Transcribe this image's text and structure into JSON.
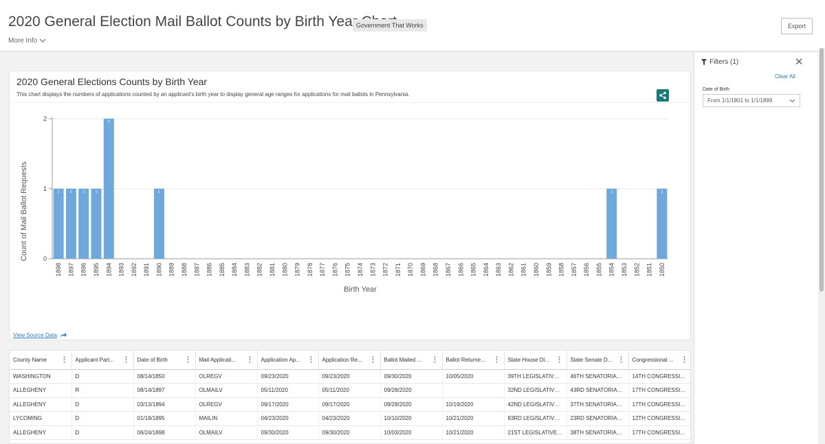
{
  "header": {
    "title": "2020 General Election Mail Ballot Counts by Birth Year Chart",
    "tag": "Government That Works",
    "more_info": "More Info",
    "export_label": "Export"
  },
  "filters": {
    "title": "Filters (1)",
    "clear_all": "Clear All",
    "dob_label": "Date of Birth",
    "dob_value": "From 1/1/1801 to 1/1/1899"
  },
  "chart_card": {
    "title": "2020 General Elections Counts by Birth Year",
    "subtitle": "This chart displays the numbers of applications counted by an applicant's birth year to display general age ranges for applications for mail ballots in Pennsylvania.",
    "view_source": "View Source Data"
  },
  "chart_data": {
    "type": "bar",
    "xlabel": "Birth Year",
    "ylabel": "Count of Mail Ballot Requests",
    "ylim": [
      0,
      2
    ],
    "yticks": [
      "0",
      "1",
      "2"
    ],
    "categories": [
      "1898",
      "1897",
      "1896",
      "1895",
      "1894",
      "1893",
      "1892",
      "1891",
      "1890",
      "1889",
      "1888",
      "1887",
      "1886",
      "1885",
      "1884",
      "1883",
      "1882",
      "1881",
      "1880",
      "1879",
      "1878",
      "1877",
      "1876",
      "1875",
      "1874",
      "1873",
      "1872",
      "1871",
      "1870",
      "1869",
      "1868",
      "1867",
      "1866",
      "1865",
      "1864",
      "1863",
      "1862",
      "1861",
      "1860",
      "1859",
      "1858",
      "1857",
      "1856",
      "1855",
      "1854",
      "1853",
      "1852",
      "1851",
      "1850"
    ],
    "values": [
      1,
      1,
      1,
      1,
      2,
      0,
      0,
      0,
      1,
      0,
      0,
      0,
      0,
      0,
      0,
      0,
      0,
      0,
      0,
      0,
      0,
      0,
      0,
      0,
      0,
      0,
      0,
      0,
      0,
      0,
      0,
      0,
      0,
      0,
      0,
      0,
      0,
      0,
      0,
      0,
      0,
      0,
      0,
      0,
      1,
      0,
      0,
      0,
      1
    ],
    "color": "#6fa8dc",
    "grid": true
  },
  "table": {
    "columns": [
      "County Name",
      "Applicant Part...",
      "Date of Birth",
      "Mail Applicati...",
      "Application Ap...",
      "Application Re...",
      "Ballot Mailed ...",
      "Ballot Returne...",
      "State House Di...",
      "State Senate D...",
      "Congressional ..."
    ],
    "rows": [
      [
        "WASHINGTON",
        "D",
        "08/14/1850",
        "OLREGV",
        "09/23/2020",
        "09/23/2020",
        "09/30/2020",
        "10/05/2020",
        "39TH LEGISLATIVE ...",
        "46TH SENATORIAL ...",
        "14TH CONGRESSIO..."
      ],
      [
        "ALLEGHENY",
        "R",
        "08/14/1897",
        "OLMAILV",
        "05/11/2020",
        "05/11/2020",
        "09/28/2020",
        "",
        "32ND LEGISLATIVE ...",
        "43RD SENATORIAL ...",
        "17TH CONGRESSIO..."
      ],
      [
        "ALLEGHENY",
        "D",
        "03/13/1894",
        "OLREGV",
        "09/17/2020",
        "09/17/2020",
        "09/28/2020",
        "10/19/2020",
        "42ND LEGISLATIVE ...",
        "37TH SENATORIAL ...",
        "17TH CONGRESSIO..."
      ],
      [
        "LYCOMING",
        "D",
        "01/18/1895",
        "MAILIN",
        "04/23/2020",
        "04/23/2020",
        "10/10/2020",
        "10/21/2020",
        "83RD LEGISLATIVE ...",
        "23RD SENATORIAL ...",
        "12TH CONGRESSIO..."
      ],
      [
        "ALLEGHENY",
        "D",
        "06/24/1898",
        "OLMAILV",
        "09/30/2020",
        "09/30/2020",
        "10/03/2020",
        "10/21/2020",
        "21ST LEGISLATIVE D...",
        "38TH SENATORIAL ...",
        "17TH CONGRESSIO..."
      ]
    ]
  }
}
